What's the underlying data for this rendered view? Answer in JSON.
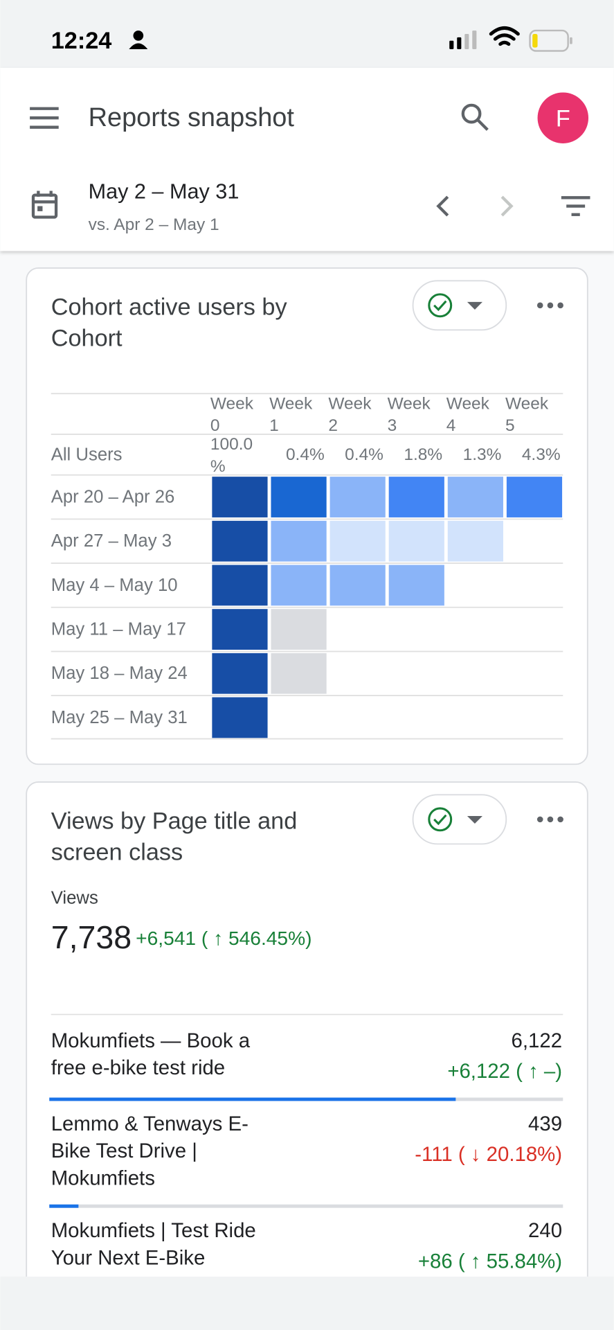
{
  "status_bar": {
    "time": "12:24"
  },
  "header": {
    "title": "Reports snapshot",
    "avatar": "F"
  },
  "date_range": {
    "primary": "May 2 – May 31",
    "comparison": "vs. Apr 2 – May 1"
  },
  "cohort_card": {
    "title_lines": [
      "Cohort active users by",
      "Cohort"
    ],
    "columns": [
      [
        "Week",
        "0"
      ],
      [
        "Week",
        "1"
      ],
      [
        "Week",
        "2"
      ],
      [
        "Week",
        "3"
      ],
      [
        "Week",
        "4"
      ],
      [
        "Week",
        "5"
      ]
    ],
    "all_users": {
      "label": "All Users",
      "values": [
        [
          "100.0",
          "%"
        ],
        [
          "0.4%"
        ],
        [
          "0.4%"
        ],
        [
          "1.8%"
        ],
        [
          "1.3%"
        ],
        [
          "4.3%"
        ]
      ]
    },
    "rows": [
      {
        "label": "Apr 20 – Apr 26",
        "cells": [
          "#174ea6",
          "#1967d2",
          "#8ab4f8",
          "#4285f4",
          "#8ab4f8",
          "#4285f4"
        ]
      },
      {
        "label": "Apr 27 – May 3",
        "cells": [
          "#174ea6",
          "#8ab4f8",
          "#d2e3fc",
          "#d2e3fc",
          "#d2e3fc"
        ]
      },
      {
        "label": "May 4 – May 10",
        "cells": [
          "#174ea6",
          "#8ab4f8",
          "#8ab4f8",
          "#8ab4f8"
        ]
      },
      {
        "label": "May 11 – May 17",
        "cells": [
          "#174ea6",
          "#dadce0"
        ]
      },
      {
        "label": "May 18 – May 24",
        "cells": [
          "#174ea6",
          "#dadce0"
        ]
      },
      {
        "label": "May 25 – May 31",
        "cells": [
          "#174ea6"
        ]
      }
    ]
  },
  "views_card": {
    "title_lines": [
      "Views by Page title and",
      "screen class"
    ],
    "metric_label": "Views",
    "total": {
      "value": 7738,
      "label": "7,738"
    },
    "total_change": "+6,541 ( ↑ 546.45%)",
    "total_change_color": "#188038",
    "rows": [
      {
        "title_lines": [
          "Mokumfiets — Book a",
          "free e-bike test ride"
        ],
        "value": {
          "value": 6122,
          "label": "6,122"
        },
        "change": "+6,122 ( ↑ –)",
        "change_color": "#188038"
      },
      {
        "title_lines": [
          "Lemmo & Tenways E-",
          "Bike Test Drive |",
          "Mokumfiets"
        ],
        "value": {
          "value": 439,
          "label": "439"
        },
        "change": "-111 ( ↓ 20.18%)",
        "change_color": "#d93025"
      },
      {
        "title_lines": [
          "Mokumfiets | Test Ride",
          "Your Next E-Bike"
        ],
        "value": {
          "value": 240,
          "label": "240"
        },
        "change": "+86 ( ↑ 55.84%)",
        "change_color": "#188038"
      }
    ]
  }
}
